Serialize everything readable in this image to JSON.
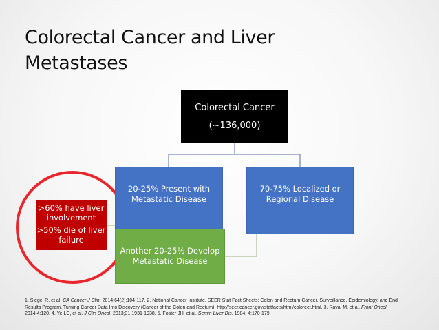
{
  "title": "Colorectal Cancer and Liver Metastases",
  "diagram": {
    "root": {
      "line1": "Colorectal Cancer",
      "line2": "(~136,000)"
    },
    "left_branch": "20-25% Present with Metastatic Disease",
    "right_branch": "70-75% Localized or Regional Disease",
    "develop_branch": "Another 20-25% Develop Metastatic Disease",
    "liver_callout": {
      "line1": ">60% have liver involvement",
      "line2": ">50% die of liver failure"
    }
  },
  "references": {
    "r1a": "1. Siegel R, et al. ",
    "r1b": "CA Cancer J Clin",
    "r1c": ". 2014;64(2):104-117. 2. National Cancer Institute. SEER Stat Fact Sheets: Colon and Rectum Cancer. Surveillance, Epidemiology, and End Results Program. Turning Cancer Data Into Discovery (Cancer of the Colon and Rectum). http://seer.cancer.gov/statfacts/html/colorect.html. 3. Raval M, et al. ",
    "r3": "Front Oncol",
    "r3b": ". 2014;4:120. 4. Ye LC, et al. ",
    "r4": "J Clin Oncol",
    "r4b": ". 2013;31:1931-1938. 5. Foster JH, et al. ",
    "r5": "Semin Liver Dis",
    "r5b": ". 1984; 4:170-179."
  },
  "colors": {
    "root": "#000000",
    "branch": "#4472c4",
    "develop": "#70ad47",
    "callout": "#c00000",
    "highlight_ring": "#e8262b"
  }
}
